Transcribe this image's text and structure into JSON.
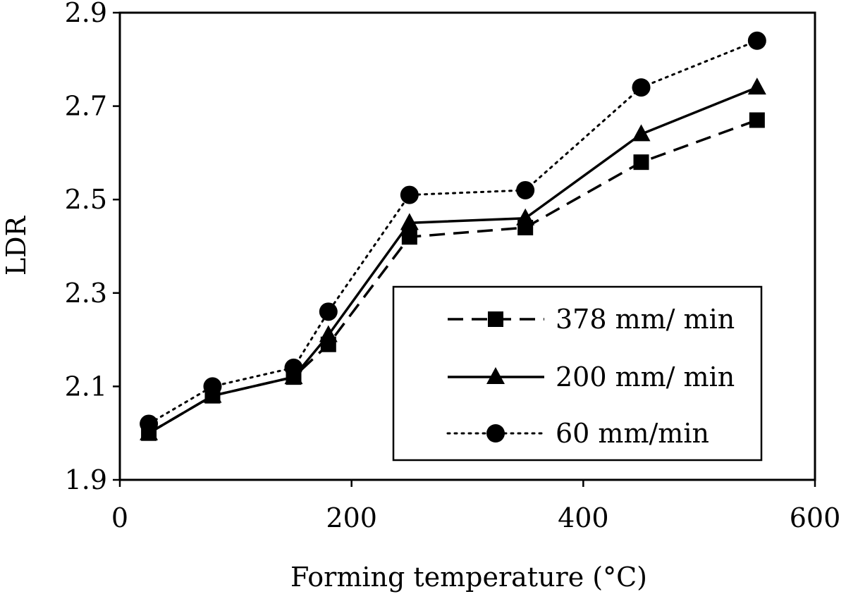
{
  "chart_data": {
    "type": "line",
    "title": "",
    "xlabel": "Forming temperature (°C)",
    "ylabel": "LDR",
    "xlim": [
      0,
      600
    ],
    "ylim": [
      1.9,
      2.9
    ],
    "x_ticks": [
      "0",
      "200",
      "400",
      "600"
    ],
    "y_ticks": [
      "1.9",
      "2.1",
      "2.3",
      "2.5",
      "2.7",
      "2.9"
    ],
    "grid": false,
    "legend_position": "bottom-right",
    "series": [
      {
        "name": "378 mm/ min",
        "marker": "square",
        "line_style": "dashed",
        "color": "#000000",
        "x": [
          25,
          80,
          150,
          180,
          250,
          350,
          450,
          550
        ],
        "y": [
          2.0,
          2.08,
          2.12,
          2.19,
          2.42,
          2.44,
          2.58,
          2.67
        ]
      },
      {
        "name": "200 mm/ min",
        "marker": "triangle",
        "line_style": "solid",
        "color": "#000000",
        "x": [
          25,
          80,
          150,
          180,
          250,
          350,
          450,
          550
        ],
        "y": [
          2.0,
          2.08,
          2.12,
          2.21,
          2.45,
          2.46,
          2.64,
          2.74
        ]
      },
      {
        "name": "60 mm/min",
        "marker": "circle",
        "line_style": "dotted",
        "color": "#000000",
        "x": [
          25,
          80,
          150,
          180,
          250,
          350,
          450,
          550
        ],
        "y": [
          2.02,
          2.1,
          2.14,
          2.26,
          2.51,
          2.52,
          2.74,
          2.84
        ]
      }
    ]
  }
}
